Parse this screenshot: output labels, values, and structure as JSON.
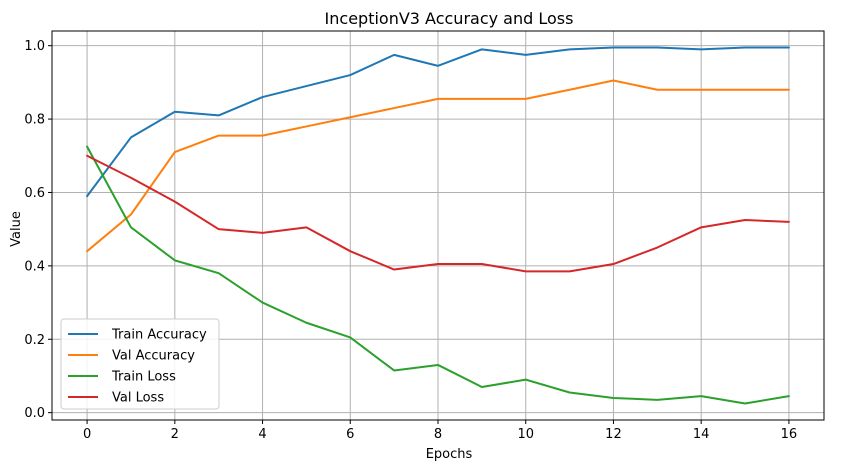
{
  "chart_data": {
    "type": "line",
    "title": "InceptionV3 Accuracy and Loss",
    "xlabel": "Epochs",
    "ylabel": "Value",
    "xlim": [
      -0.8,
      16.8
    ],
    "ylim": [
      -0.02,
      1.04
    ],
    "x_ticks": [
      0,
      2,
      4,
      6,
      8,
      10,
      12,
      14,
      16
    ],
    "y_ticks": [
      0.0,
      0.2,
      0.4,
      0.6,
      0.8,
      1.0
    ],
    "y_tick_labels": [
      "0.0",
      "0.2",
      "0.4",
      "0.6",
      "0.8",
      "1.0"
    ],
    "grid": true,
    "legend_position": "lower-left",
    "x": [
      0,
      1,
      2,
      3,
      4,
      5,
      6,
      7,
      8,
      9,
      10,
      11,
      12,
      13,
      14,
      15,
      16
    ],
    "series": [
      {
        "name": "Train Accuracy",
        "color": "#1f77b4",
        "values": [
          0.59,
          0.75,
          0.82,
          0.81,
          0.86,
          0.89,
          0.92,
          0.975,
          0.945,
          0.99,
          0.975,
          0.99,
          0.995,
          0.995,
          0.99,
          0.995,
          0.995
        ]
      },
      {
        "name": "Val Accuracy",
        "color": "#ff7f0e",
        "values": [
          0.44,
          0.54,
          0.71,
          0.755,
          0.755,
          0.78,
          0.805,
          0.83,
          0.855,
          0.855,
          0.855,
          0.88,
          0.905,
          0.88,
          0.88,
          0.88,
          0.88
        ]
      },
      {
        "name": "Train Loss",
        "color": "#2ca02c",
        "values": [
          0.725,
          0.505,
          0.415,
          0.38,
          0.3,
          0.245,
          0.205,
          0.115,
          0.13,
          0.07,
          0.09,
          0.055,
          0.04,
          0.035,
          0.045,
          0.025,
          0.045
        ]
      },
      {
        "name": "Val Loss",
        "color": "#d62728",
        "values": [
          0.7,
          0.64,
          0.575,
          0.5,
          0.49,
          0.505,
          0.44,
          0.39,
          0.405,
          0.405,
          0.385,
          0.385,
          0.405,
          0.45,
          0.505,
          0.525,
          0.52
        ]
      }
    ]
  }
}
